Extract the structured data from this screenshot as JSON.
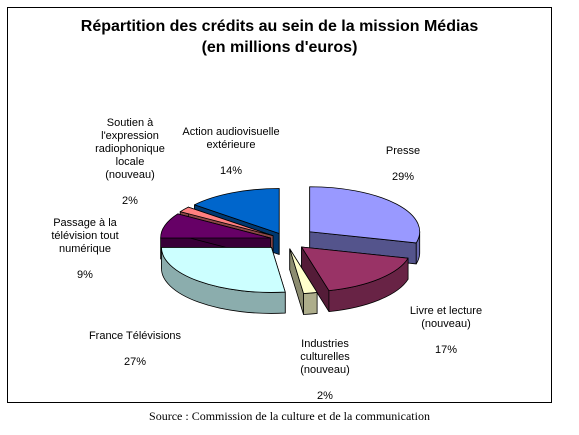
{
  "chart_data": {
    "type": "pie",
    "title": "Répartition des crédits au sein de la mission Médias\n(en millions d'euros)",
    "categories": [
      "Presse",
      "Livre et lecture\n(nouveau)",
      "Industries\nculturelles\n(nouveau)",
      "France Télévisions",
      "Passage à la\ntélévision tout\nnumérique",
      "Soutien à\nl'expression\nradiophonique\nlocale\n(nouveau)",
      "Action audiovisuelle\nextérieure"
    ],
    "values": [
      29,
      17,
      2,
      27,
      9,
      2,
      14
    ],
    "value_labels": [
      "29%",
      "17%",
      "2%",
      "27%",
      "9%",
      "2%",
      "14%"
    ],
    "colors": [
      "#9999FF",
      "#993366",
      "#FFFFCC",
      "#CCFFFF",
      "#660066",
      "#FF8080",
      "#0066CC"
    ],
    "exploded": true,
    "style": "3d",
    "legend": "none"
  },
  "source": "Source : Commission de la culture et de la communication"
}
